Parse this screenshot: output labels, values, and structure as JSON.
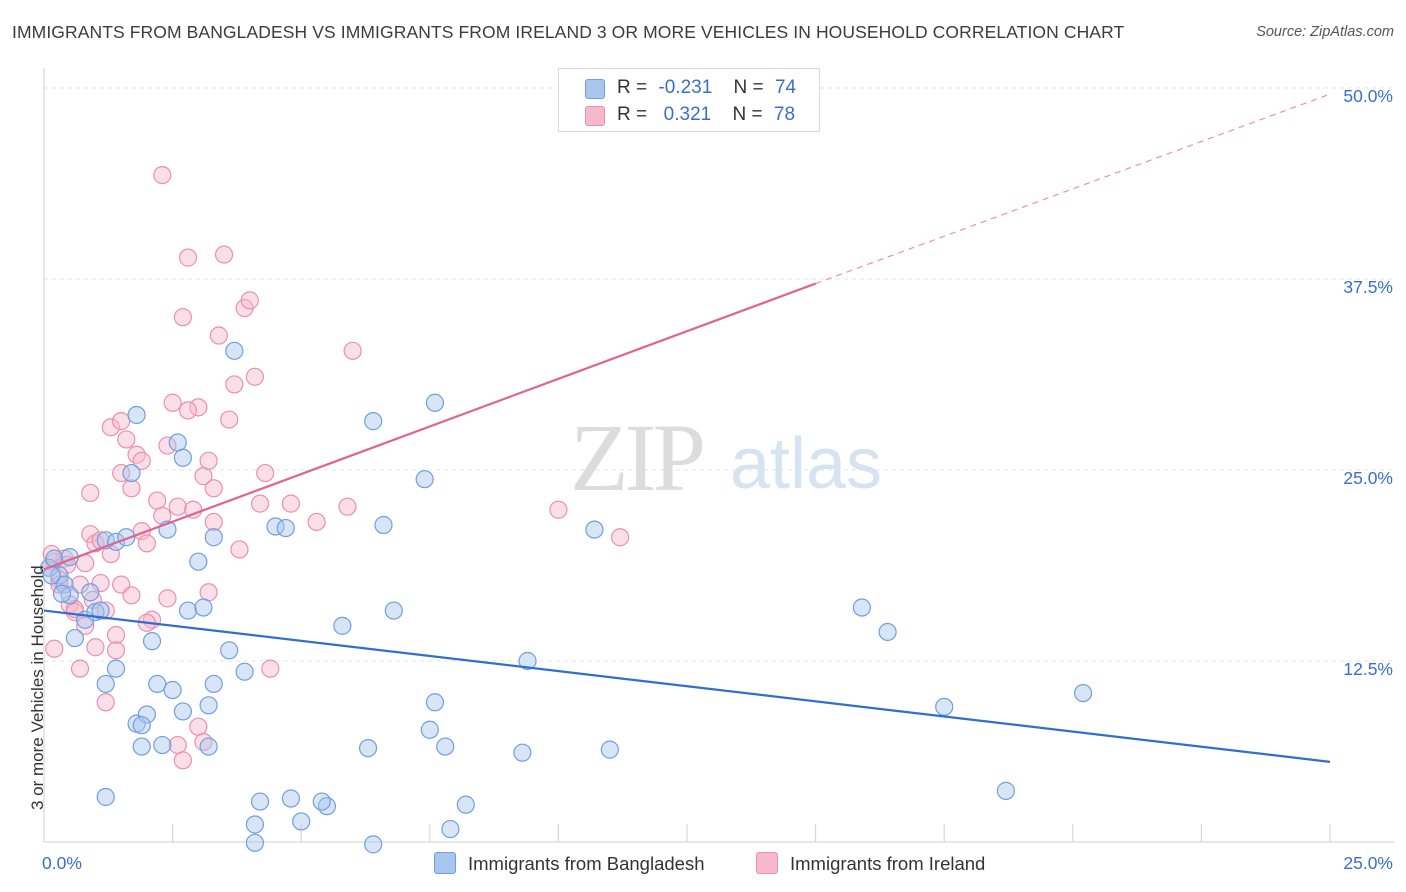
{
  "title": "IMMIGRANTS FROM BANGLADESH VS IMMIGRANTS FROM IRELAND 3 OR MORE VEHICLES IN HOUSEHOLD CORRELATION CHART",
  "source": "Source: ZipAtlas.com",
  "watermark": {
    "zip": "ZIP",
    "atlas": "atlas"
  },
  "legend": {
    "rows": [
      {
        "r_label": "R =",
        "r_value": "-0.231",
        "n_label": "N =",
        "n_value": "74"
      },
      {
        "r_label": "R =",
        "r_value": " 0.321",
        "n_label": "N =",
        "n_value": "78"
      }
    ]
  },
  "bottom_legend": [
    "Immigrants from Bangladesh",
    "Immigrants from Ireland"
  ],
  "colors": {
    "blue_fill": "#a9c6ee",
    "blue_stroke": "#6f9fe0",
    "blue_line": "#2f6fd0",
    "pink_fill": "#f6b8cb",
    "pink_stroke": "#ec8fae",
    "pink_line": "#e0648f",
    "grid": "#e3e3e3",
    "tick_label": "#3a6fc9"
  },
  "chart_data": {
    "type": "scatter",
    "title": "IMMIGRANTS FROM BANGLADESH VS IMMIGRANTS FROM IRELAND 3 OR MORE VEHICLES IN HOUSEHOLD CORRELATION CHART",
    "xlabel": "",
    "ylabel": "3 or more Vehicles in Household",
    "xlim": [
      0,
      25
    ],
    "ylim": [
      0,
      50
    ],
    "x_tick_labels": [
      {
        "value": 0,
        "label": "0.0%"
      },
      {
        "value": 25,
        "label": "25.0%"
      }
    ],
    "y_tick_labels": [
      {
        "value": 12.5,
        "label": "12.5%"
      },
      {
        "value": 25,
        "label": "25.0%"
      },
      {
        "value": 37.5,
        "label": "37.5%"
      },
      {
        "value": 50,
        "label": "50.0%"
      }
    ],
    "grid": true,
    "legend_position": "top-center",
    "series": [
      {
        "name": "Immigrants from Bangladesh",
        "r": -0.231,
        "n": 74,
        "trend": {
          "x": [
            0,
            25
          ],
          "y": [
            15.8,
            5.9
          ]
        },
        "points": [
          [
            0.1,
            18.6
          ],
          [
            0.2,
            19.2
          ],
          [
            0.3,
            18.1
          ],
          [
            0.4,
            17.5
          ],
          [
            0.5,
            19.3
          ],
          [
            0.5,
            16.8
          ],
          [
            0.6,
            14.0
          ],
          [
            0.8,
            15.2
          ],
          [
            0.9,
            17.0
          ],
          [
            1.0,
            15.7
          ],
          [
            1.1,
            15.8
          ],
          [
            1.2,
            20.4
          ],
          [
            1.4,
            20.3
          ],
          [
            1.6,
            20.6
          ],
          [
            1.7,
            24.8
          ],
          [
            1.8,
            28.6
          ],
          [
            1.2,
            11.0
          ],
          [
            1.2,
            3.6
          ],
          [
            1.4,
            12.0
          ],
          [
            1.8,
            8.4
          ],
          [
            2.0,
            9.0
          ],
          [
            2.1,
            13.8
          ],
          [
            2.2,
            11.0
          ],
          [
            2.4,
            21.1
          ],
          [
            2.6,
            26.8
          ],
          [
            2.7,
            25.8
          ],
          [
            2.5,
            10.6
          ],
          [
            2.3,
            7.0
          ],
          [
            2.8,
            15.8
          ],
          [
            3.0,
            19.0
          ],
          [
            3.1,
            16.0
          ],
          [
            3.3,
            11.0
          ],
          [
            3.3,
            20.6
          ],
          [
            3.6,
            13.2
          ],
          [
            3.7,
            32.8
          ],
          [
            3.9,
            11.8
          ],
          [
            3.2,
            9.6
          ],
          [
            2.7,
            9.2
          ],
          [
            1.9,
            8.3
          ],
          [
            1.9,
            6.9
          ],
          [
            3.2,
            6.9
          ],
          [
            4.5,
            21.3
          ],
          [
            4.7,
            21.2
          ],
          [
            4.2,
            3.3
          ],
          [
            4.8,
            3.5
          ],
          [
            4.1,
            1.8
          ],
          [
            4.1,
            0.6
          ],
          [
            5.0,
            2.0
          ],
          [
            5.5,
            3.0
          ],
          [
            5.4,
            3.3
          ],
          [
            5.8,
            14.8
          ],
          [
            6.4,
            28.2
          ],
          [
            6.8,
            15.8
          ],
          [
            6.6,
            21.4
          ],
          [
            7.4,
            24.4
          ],
          [
            7.6,
            29.4
          ],
          [
            7.6,
            9.8
          ],
          [
            7.5,
            8.0
          ],
          [
            7.8,
            6.9
          ],
          [
            8.2,
            3.1
          ],
          [
            7.9,
            1.5
          ],
          [
            6.4,
            0.5
          ],
          [
            6.3,
            6.8
          ],
          [
            9.4,
            12.5
          ],
          [
            9.3,
            6.5
          ],
          [
            10.7,
            21.1
          ],
          [
            11.0,
            6.7
          ],
          [
            15.9,
            16.0
          ],
          [
            16.4,
            14.4
          ],
          [
            17.5,
            9.5
          ],
          [
            18.7,
            4.0
          ],
          [
            20.2,
            10.4
          ],
          [
            0.15,
            18.1
          ],
          [
            0.35,
            16.9
          ]
        ]
      },
      {
        "name": "Immigrants from Ireland",
        "r": 0.321,
        "n": 78,
        "trend": {
          "x": [
            0,
            15
          ],
          "y": [
            18.5,
            37.2
          ]
        },
        "trend_extended": {
          "x": [
            15,
            25
          ],
          "y": [
            37.2,
            49.6
          ]
        },
        "points": [
          [
            0.1,
            18.6
          ],
          [
            0.2,
            19.0
          ],
          [
            0.3,
            17.8
          ],
          [
            0.4,
            19.2
          ],
          [
            0.5,
            16.2
          ],
          [
            0.6,
            15.7
          ],
          [
            0.7,
            17.5
          ],
          [
            0.8,
            18.9
          ],
          [
            0.9,
            20.8
          ],
          [
            1.0,
            20.2
          ],
          [
            1.1,
            17.6
          ],
          [
            1.2,
            15.8
          ],
          [
            1.3,
            19.5
          ],
          [
            1.4,
            14.2
          ],
          [
            1.5,
            24.8
          ],
          [
            1.6,
            27.0
          ],
          [
            1.7,
            23.8
          ],
          [
            1.8,
            26.0
          ],
          [
            1.9,
            21.0
          ],
          [
            2.0,
            20.2
          ],
          [
            2.1,
            15.2
          ],
          [
            2.2,
            23.0
          ],
          [
            2.3,
            22.0
          ],
          [
            2.4,
            26.6
          ],
          [
            2.5,
            29.4
          ],
          [
            2.6,
            22.6
          ],
          [
            2.7,
            35.0
          ],
          [
            2.8,
            38.9
          ],
          [
            2.9,
            22.4
          ],
          [
            3.0,
            29.1
          ],
          [
            3.1,
            24.6
          ],
          [
            3.2,
            25.6
          ],
          [
            3.3,
            21.6
          ],
          [
            3.4,
            33.8
          ],
          [
            3.5,
            39.1
          ],
          [
            3.6,
            28.3
          ],
          [
            3.7,
            30.6
          ],
          [
            3.8,
            19.8
          ],
          [
            3.9,
            35.6
          ],
          [
            4.0,
            36.1
          ],
          [
            4.1,
            31.1
          ],
          [
            4.2,
            22.8
          ],
          [
            4.3,
            24.8
          ],
          [
            4.4,
            12.0
          ],
          [
            4.8,
            22.8
          ],
          [
            5.3,
            21.6
          ],
          [
            5.9,
            22.6
          ],
          [
            6.0,
            32.8
          ],
          [
            2.3,
            44.3
          ],
          [
            0.9,
            23.5
          ],
          [
            1.3,
            27.8
          ],
          [
            1.5,
            28.2
          ],
          [
            0.7,
            12.0
          ],
          [
            1.2,
            9.8
          ],
          [
            1.4,
            13.2
          ],
          [
            2.6,
            7.0
          ],
          [
            3.0,
            8.2
          ],
          [
            2.7,
            6.0
          ],
          [
            3.1,
            7.2
          ],
          [
            0.2,
            13.3
          ],
          [
            0.6,
            15.9
          ],
          [
            1.0,
            13.4
          ],
          [
            1.5,
            17.5
          ],
          [
            1.7,
            16.8
          ],
          [
            2.0,
            15.0
          ],
          [
            2.4,
            16.6
          ],
          [
            3.2,
            17.0
          ],
          [
            0.3,
            17.5
          ],
          [
            0.8,
            14.8
          ],
          [
            1.1,
            20.4
          ],
          [
            1.9,
            25.6
          ],
          [
            2.8,
            28.9
          ],
          [
            3.3,
            23.8
          ],
          [
            10.0,
            22.4
          ],
          [
            11.2,
            20.6
          ],
          [
            0.15,
            19.5
          ],
          [
            0.45,
            18.8
          ],
          [
            0.95,
            16.5
          ]
        ]
      }
    ]
  }
}
